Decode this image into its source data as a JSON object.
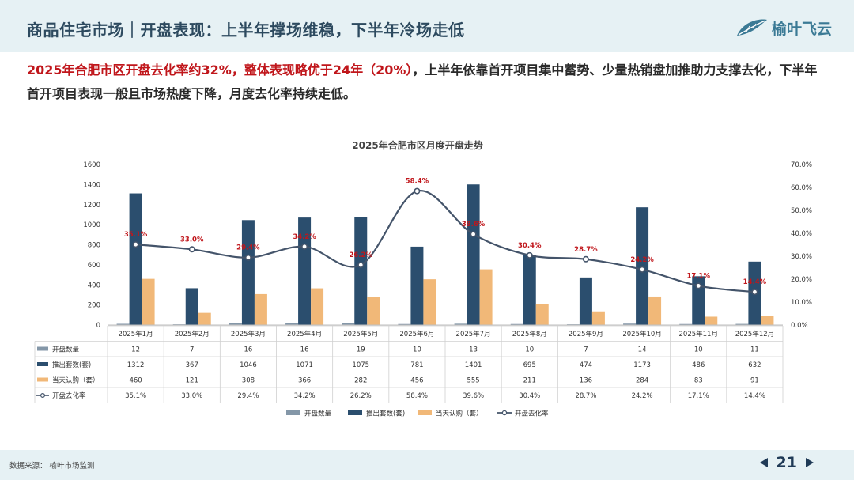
{
  "header": {
    "title": "商品住宅市场｜开盘表现：上半年撑场维稳，下半年冷场走低",
    "logo_text": "榆叶飞云",
    "logo_icon": "leaf-icon"
  },
  "summary": {
    "highlight": "2025年合肥市区开盘去化率约32%，整体表现略优于24年（20%）",
    "rest": "，上半年依靠首开项目集中蓄势、少量热销盘加推助力支撑去化，下半年首开项目表现一般且市场热度下降，月度去化率持续走低。"
  },
  "footer": {
    "source": "数据来源：  榆叶市场监测",
    "page": "21",
    "prev_icon": "triangle-left-icon",
    "next_icon": "triangle-right-icon"
  },
  "colors": {
    "opening_count": "#8497a8",
    "launched": "#2b4e6e",
    "subscribed": "#f1b878",
    "rate_line": "#44546a",
    "rate_label": "#c0161b"
  },
  "chart_data": {
    "type": "bar",
    "title": "2025年合肥市区月度开盘走势",
    "categories": [
      "2025年1月",
      "2025年2月",
      "2025年3月",
      "2025年4月",
      "2025年5月",
      "2025年6月",
      "2025年7月",
      "2025年8月",
      "2025年9月",
      "2025年10月",
      "2025年11月",
      "2025年12月"
    ],
    "series": [
      {
        "name": "开盘数量",
        "type": "bar",
        "axis": "left",
        "values": [
          12,
          7,
          16,
          16,
          19,
          10,
          13,
          10,
          7,
          14,
          10,
          11
        ]
      },
      {
        "name": "推出套数(套)",
        "type": "bar",
        "axis": "left",
        "values": [
          1312,
          367,
          1046,
          1071,
          1075,
          781,
          1401,
          695,
          474,
          1173,
          486,
          632
        ]
      },
      {
        "name": "当天认购（套）",
        "type": "bar",
        "axis": "left",
        "values": [
          460,
          121,
          308,
          366,
          282,
          456,
          555,
          211,
          136,
          284,
          83,
          91
        ]
      },
      {
        "name": "开盘去化率",
        "type": "line",
        "axis": "right",
        "values": [
          35.1,
          33.0,
          29.4,
          34.2,
          26.2,
          58.4,
          39.6,
          30.4,
          28.7,
          24.2,
          17.1,
          14.4
        ]
      }
    ],
    "y_left": {
      "min": 0,
      "max": 1600,
      "step": 200,
      "ticks": [
        "0",
        "200",
        "400",
        "600",
        "800",
        "1000",
        "1200",
        "1400",
        "1600"
      ]
    },
    "y_right": {
      "min": 0,
      "max": 70,
      "step": 10,
      "ticks": [
        "0.0%",
        "10.0%",
        "20.0%",
        "30.0%",
        "40.0%",
        "50.0%",
        "60.0%",
        "70.0%"
      ]
    },
    "rate_labels": [
      "35.1%",
      "33.0%",
      "29.4%",
      "34.2%",
      "26.2%",
      "58.4%",
      "39.6%",
      "30.4%",
      "28.7%",
      "24.2%",
      "17.1%",
      "14.4%"
    ],
    "table_rows": [
      {
        "label": "开盘数量",
        "cells": [
          "12",
          "7",
          "16",
          "16",
          "19",
          "10",
          "13",
          "10",
          "7",
          "14",
          "10",
          "11"
        ]
      },
      {
        "label": "推出套数(套)",
        "cells": [
          "1312",
          "367",
          "1046",
          "1071",
          "1075",
          "781",
          "1401",
          "695",
          "474",
          "1173",
          "486",
          "632"
        ]
      },
      {
        "label": "当天认购（套）",
        "cells": [
          "460",
          "121",
          "308",
          "366",
          "282",
          "456",
          "555",
          "211",
          "136",
          "284",
          "83",
          "91"
        ]
      },
      {
        "label": "开盘去化率",
        "cells": [
          "35.1%",
          "33.0%",
          "29.4%",
          "34.2%",
          "26.2%",
          "58.4%",
          "39.6%",
          "30.4%",
          "28.7%",
          "24.2%",
          "17.1%",
          "14.4%"
        ]
      }
    ],
    "legend_position": "bottom",
    "grid": false
  }
}
